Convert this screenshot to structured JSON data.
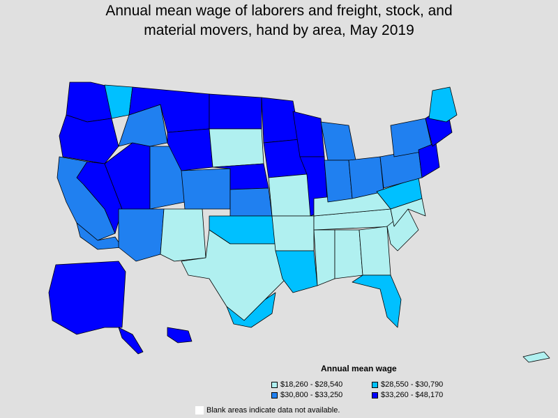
{
  "title_lines": [
    "Annual mean wage of laborers and freight, stock, and",
    "material movers, hand by area, May 2019"
  ],
  "legend": {
    "title": "Annual mean wage",
    "items": [
      {
        "label": "$18,260 - $28,540",
        "color": "#b0f0f0"
      },
      {
        "label": "$28,550 - $30,790",
        "color": "#00c0ff"
      },
      {
        "label": "$30,800 - $33,250",
        "color": "#2080f0"
      },
      {
        "label": "$33,260 - $48,170",
        "color": "#0000ff"
      }
    ]
  },
  "blank_note": "Blank areas indicate data not available.",
  "colors": {
    "background": "#e0e0e0",
    "border": "#000000"
  }
}
